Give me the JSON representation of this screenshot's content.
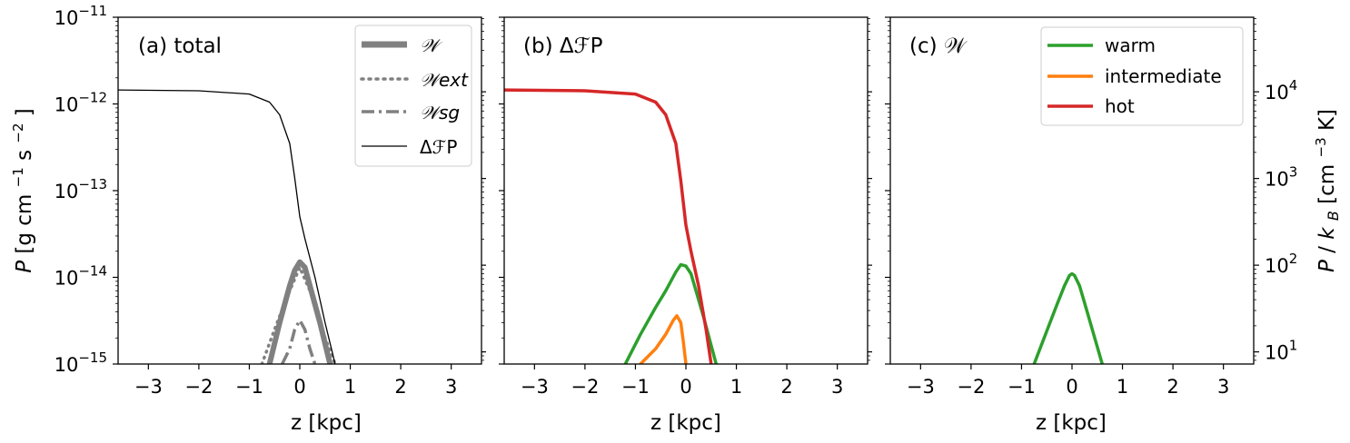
{
  "chart_data": [
    {
      "type": "line",
      "panel_label": "(a) total",
      "xlabel": "z [kpc]",
      "ylabel": "P [g cm^-1 s^-2]",
      "y_scale": "log",
      "xlim": [
        -3.6,
        3.6
      ],
      "ylim": [
        1e-15,
        1e-11
      ],
      "x_ticks": [
        -3,
        -2,
        -1,
        0,
        1,
        2,
        3
      ],
      "x_tick_labels": [
        "−3",
        "−2",
        "−1",
        "0",
        "1",
        "2",
        "3"
      ],
      "y_tick_labels": [
        {
          "base": "10",
          "exp": "−15",
          "value": 1e-15
        },
        {
          "base": "10",
          "exp": "−14",
          "value": 1e-14
        },
        {
          "base": "10",
          "exp": "−13",
          "value": 1e-13
        },
        {
          "base": "10",
          "exp": "−12",
          "value": 1e-12
        },
        {
          "base": "10",
          "exp": "−11",
          "value": 1e-11
        }
      ],
      "legend_position": "top-right",
      "series": [
        {
          "name": "𝒲",
          "color": "#808080",
          "style": "solid-thick",
          "x": [
            -0.6,
            -0.4,
            -0.2,
            -0.1,
            0.0,
            0.1,
            0.2,
            0.4,
            0.6
          ],
          "y": [
            1e-15,
            3e-15,
            8e-15,
            1.2e-14,
            1.5e-14,
            1.3e-14,
            8e-15,
            3e-15,
            1e-15
          ]
        },
        {
          "name": "𝒲ext",
          "color": "#808080",
          "style": "dotted",
          "x": [
            -0.75,
            -0.5,
            -0.25,
            0.0,
            0.25,
            0.5,
            0.7
          ],
          "y": [
            1e-15,
            2.5e-15,
            6e-15,
            1.3e-14,
            6e-15,
            2e-15,
            1e-15
          ]
        },
        {
          "name": "𝒲sg",
          "color": "#808080",
          "style": "dashdot",
          "x": [
            -0.35,
            -0.2,
            -0.1,
            0.0,
            0.1,
            0.2,
            0.3
          ],
          "y": [
            1e-15,
            1.5e-15,
            2.5e-15,
            3.2e-15,
            2.5e-15,
            1.5e-15,
            1e-15
          ]
        },
        {
          "name": "ΔℱP",
          "color": "#000000",
          "style": "solid-thin",
          "x": [
            -3.6,
            -2.0,
            -1.0,
            -0.6,
            -0.4,
            -0.2,
            -0.1,
            0.0,
            0.1,
            0.3,
            0.5,
            0.7
          ],
          "y": [
            1.45e-12,
            1.42e-12,
            1.3e-12,
            1.05e-12,
            7.5e-13,
            3.5e-13,
            1.4e-13,
            5e-14,
            2.8e-14,
            1e-14,
            3e-15,
            1e-15
          ]
        }
      ]
    },
    {
      "type": "line",
      "panel_label": "(b) ΔℱP",
      "xlabel": "z [kpc]",
      "y_scale": "log",
      "xlim": [
        -3.6,
        3.6
      ],
      "ylim": [
        1e-15,
        1e-11
      ],
      "x_ticks": [
        -3,
        -2,
        -1,
        0,
        1,
        2,
        3
      ],
      "x_tick_labels": [
        "−3",
        "−2",
        "−1",
        "0",
        "1",
        "2",
        "3"
      ],
      "series": [
        {
          "name": "warm",
          "color": "#2ca02c",
          "x": [
            -1.2,
            -0.9,
            -0.6,
            -0.4,
            -0.2,
            -0.1,
            0.0,
            0.1,
            0.2,
            0.35,
            0.6
          ],
          "y": [
            1e-15,
            2.2e-15,
            4.5e-15,
            7e-15,
            1.15e-14,
            1.4e-14,
            1.35e-14,
            1.1e-14,
            7e-15,
            3.5e-15,
            1e-15
          ]
        },
        {
          "name": "intermediate",
          "color": "#ff7f0e",
          "x": [
            -0.9,
            -0.6,
            -0.4,
            -0.25,
            -0.18,
            -0.1,
            -0.05,
            0.0
          ],
          "y": [
            1e-15,
            1.5e-15,
            2.2e-15,
            3.2e-15,
            3.6e-15,
            3e-15,
            1.8e-15,
            1e-15
          ]
        },
        {
          "name": "hot",
          "color": "#d62728",
          "x": [
            -3.6,
            -2.0,
            -1.0,
            -0.6,
            -0.4,
            -0.2,
            -0.1,
            0.0,
            0.1,
            0.25,
            0.4,
            0.5
          ],
          "y": [
            1.45e-12,
            1.42e-12,
            1.3e-12,
            1.05e-12,
            7.5e-13,
            3.5e-13,
            1.3e-13,
            4e-14,
            2e-14,
            8e-15,
            2.5e-15,
            1e-15
          ]
        }
      ]
    },
    {
      "type": "line",
      "panel_label": "(c) 𝒲",
      "xlabel": "z [kpc]",
      "y_scale": "log",
      "xlim": [
        -3.6,
        3.6
      ],
      "ylim": [
        1e-15,
        1e-11
      ],
      "x_ticks": [
        -3,
        -2,
        -1,
        0,
        1,
        2,
        3
      ],
      "x_tick_labels": [
        "−3",
        "−2",
        "−1",
        "0",
        "1",
        "2",
        "3"
      ],
      "right_axis": {
        "label": "P/kB [cm^-3 K]",
        "scale": "log",
        "tick_labels": [
          {
            "base": "10",
            "exp": "1",
            "value": 10
          },
          {
            "base": "10",
            "exp": "2",
            "value": 100
          },
          {
            "base": "10",
            "exp": "3",
            "value": 1000
          },
          {
            "base": "10",
            "exp": "4",
            "value": 10000
          }
        ]
      },
      "legend_position": "top-right",
      "series": [
        {
          "name": "warm",
          "color": "#2ca02c",
          "x": [
            -0.75,
            -0.5,
            -0.3,
            -0.15,
            -0.05,
            0.0,
            0.05,
            0.15,
            0.3,
            0.45,
            0.6
          ],
          "y": [
            1e-15,
            2.4e-15,
            4.8e-15,
            8e-15,
            1.05e-14,
            1.1e-14,
            1.05e-14,
            8e-15,
            4e-15,
            2e-15,
            1e-15
          ]
        },
        {
          "name": "intermediate",
          "color": "#ff7f0e",
          "x": [],
          "y": []
        },
        {
          "name": "hot",
          "color": "#d62728",
          "x": [],
          "y": []
        }
      ]
    }
  ]
}
